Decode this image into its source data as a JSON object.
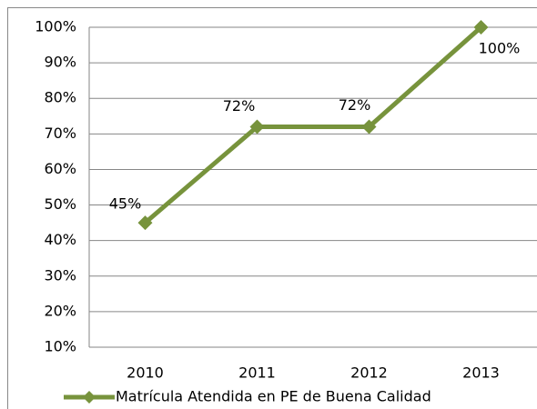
{
  "chart_data": {
    "type": "line",
    "categories": [
      "2010",
      "2011",
      "2012",
      "2013"
    ],
    "series": [
      {
        "name": "Matrícula Atendida en PE de Buena Calidad",
        "color": "#77933c",
        "values": [
          45,
          72,
          72,
          100
        ],
        "value_labels": [
          "45%",
          "72%",
          "72%",
          "100%"
        ]
      }
    ],
    "ylim": [
      10,
      100
    ],
    "yticks": [
      {
        "value": 10,
        "label": "10%"
      },
      {
        "value": 20,
        "label": "20%"
      },
      {
        "value": 30,
        "label": "30%"
      },
      {
        "value": 40,
        "label": "40%"
      },
      {
        "value": 50,
        "label": "50%"
      },
      {
        "value": 60,
        "label": "60%"
      },
      {
        "value": 70,
        "label": "70%"
      },
      {
        "value": 80,
        "label": "80%"
      },
      {
        "value": 90,
        "label": "90%"
      },
      {
        "value": 100,
        "label": "100%"
      }
    ],
    "grid": true,
    "legend": "bottom"
  }
}
